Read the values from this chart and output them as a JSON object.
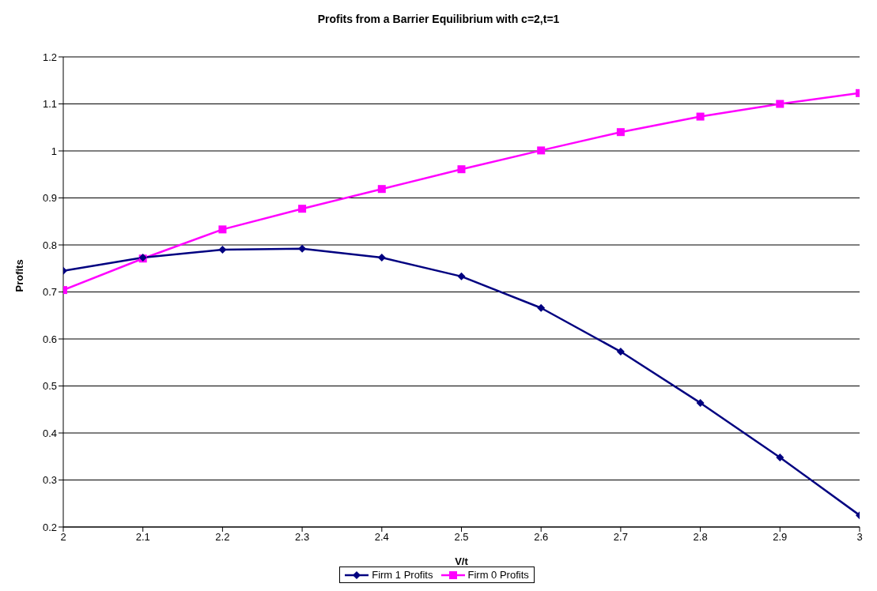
{
  "chart_data": {
    "type": "line",
    "title": "Profits from a Barrier Equilibrium with c=2,t=1",
    "xlabel": "V/t",
    "ylabel": "Profits",
    "x": [
      2,
      2.1,
      2.2,
      2.3,
      2.4,
      2.5,
      2.6,
      2.7,
      2.8,
      2.9,
      3
    ],
    "series": [
      {
        "name": "Firm 1 Profits",
        "color": "#000080",
        "marker": "diamond",
        "values": [
          0.745,
          0.773,
          0.79,
          0.792,
          0.773,
          0.733,
          0.666,
          0.573,
          0.464,
          0.348,
          0.225
        ]
      },
      {
        "name": "Firm 0 Profits",
        "color": "#ff00ff",
        "marker": "square",
        "values": [
          0.704,
          0.771,
          0.833,
          0.877,
          0.919,
          0.961,
          1.001,
          1.04,
          1.073,
          1.1,
          1.123
        ]
      }
    ],
    "xlim": [
      2,
      3
    ],
    "xticks": [
      2,
      2.1,
      2.2,
      2.3,
      2.4,
      2.5,
      2.6,
      2.7,
      2.8,
      2.9,
      3
    ],
    "ylim": [
      0.2,
      1.2
    ],
    "yticks": [
      0.2,
      0.3,
      0.4,
      0.5,
      0.6,
      0.7,
      0.8,
      0.9,
      1,
      1.1,
      1.2
    ],
    "grid": "y",
    "legend": "bottom",
    "line_style": "solid"
  }
}
